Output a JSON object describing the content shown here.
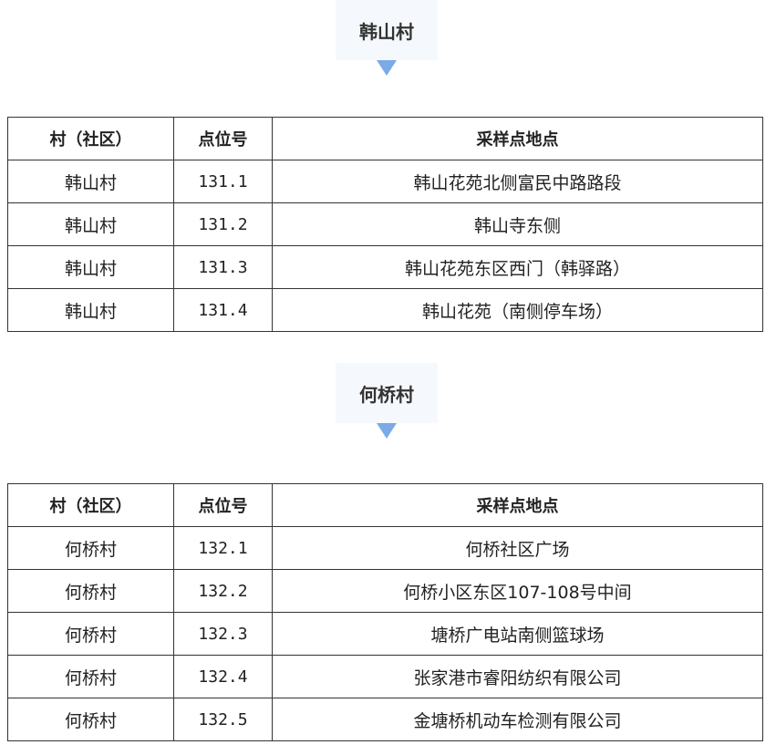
{
  "colors": {
    "title_bg": "#f5f8fc",
    "arrow": "#7aaae8",
    "border": "#333333"
  },
  "headers": [
    "村（社区）",
    "点位号",
    "采样点地点"
  ],
  "sections": [
    {
      "title": "韩山村",
      "rows": [
        [
          "韩山村",
          "131.1",
          "韩山花苑北侧富民中路路段"
        ],
        [
          "韩山村",
          "131.2",
          "韩山寺东侧"
        ],
        [
          "韩山村",
          "131.3",
          "韩山花苑东区西门（韩驿路）"
        ],
        [
          "韩山村",
          "131.4",
          "韩山花苑（南侧停车场）"
        ]
      ]
    },
    {
      "title": "何桥村",
      "rows": [
        [
          "何桥村",
          "132.1",
          "何桥社区广场"
        ],
        [
          "何桥村",
          "132.2",
          "何桥小区东区107-108号中间"
        ],
        [
          "何桥村",
          "132.3",
          "塘桥广电站南侧篮球场"
        ],
        [
          "何桥村",
          "132.4",
          "张家港市睿阳纺织有限公司"
        ],
        [
          "何桥村",
          "132.5",
          "金塘桥机动车检测有限公司"
        ]
      ]
    }
  ]
}
